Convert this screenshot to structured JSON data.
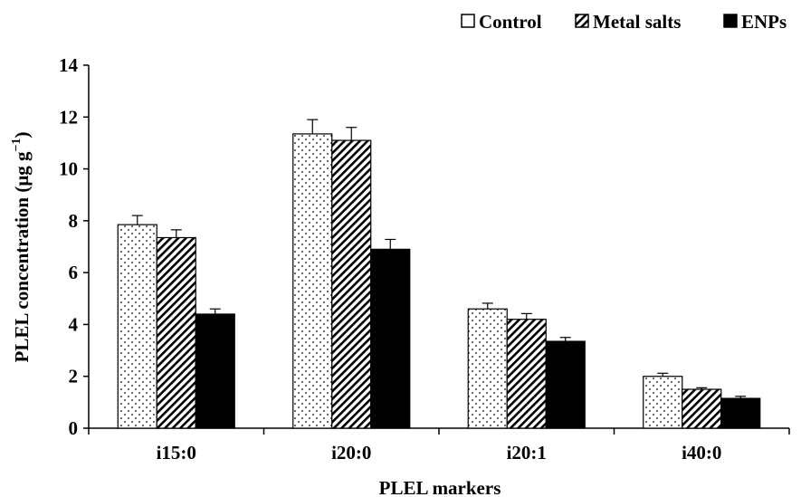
{
  "chart_data": {
    "type": "bar",
    "xlabel": "PLEL markers",
    "ylabel": "PLEL concentration (μg g",
    "ylabel_sup": "−1",
    "ylabel_close": ")",
    "ylim": [
      0,
      14
    ],
    "yticks": [
      0,
      2,
      4,
      6,
      8,
      10,
      12,
      14
    ],
    "categories": [
      "i15:0",
      "i20:0",
      "i20:1",
      "i40:0"
    ],
    "series": [
      {
        "name": "Control",
        "pattern": "dots",
        "values": [
          7.85,
          11.35,
          4.6,
          2.0
        ],
        "errors": [
          0.35,
          0.55,
          0.22,
          0.12
        ]
      },
      {
        "name": "Metal salts",
        "pattern": "diagonal-hatch",
        "values": [
          7.35,
          11.1,
          4.2,
          1.5
        ],
        "errors": [
          0.3,
          0.5,
          0.22,
          0.06
        ]
      },
      {
        "name": "ENPs",
        "pattern": "solid-black",
        "values": [
          4.4,
          6.9,
          3.35,
          1.15
        ],
        "errors": [
          0.2,
          0.38,
          0.15,
          0.08
        ]
      }
    ],
    "legend_position": "top-right",
    "grid": false
  }
}
